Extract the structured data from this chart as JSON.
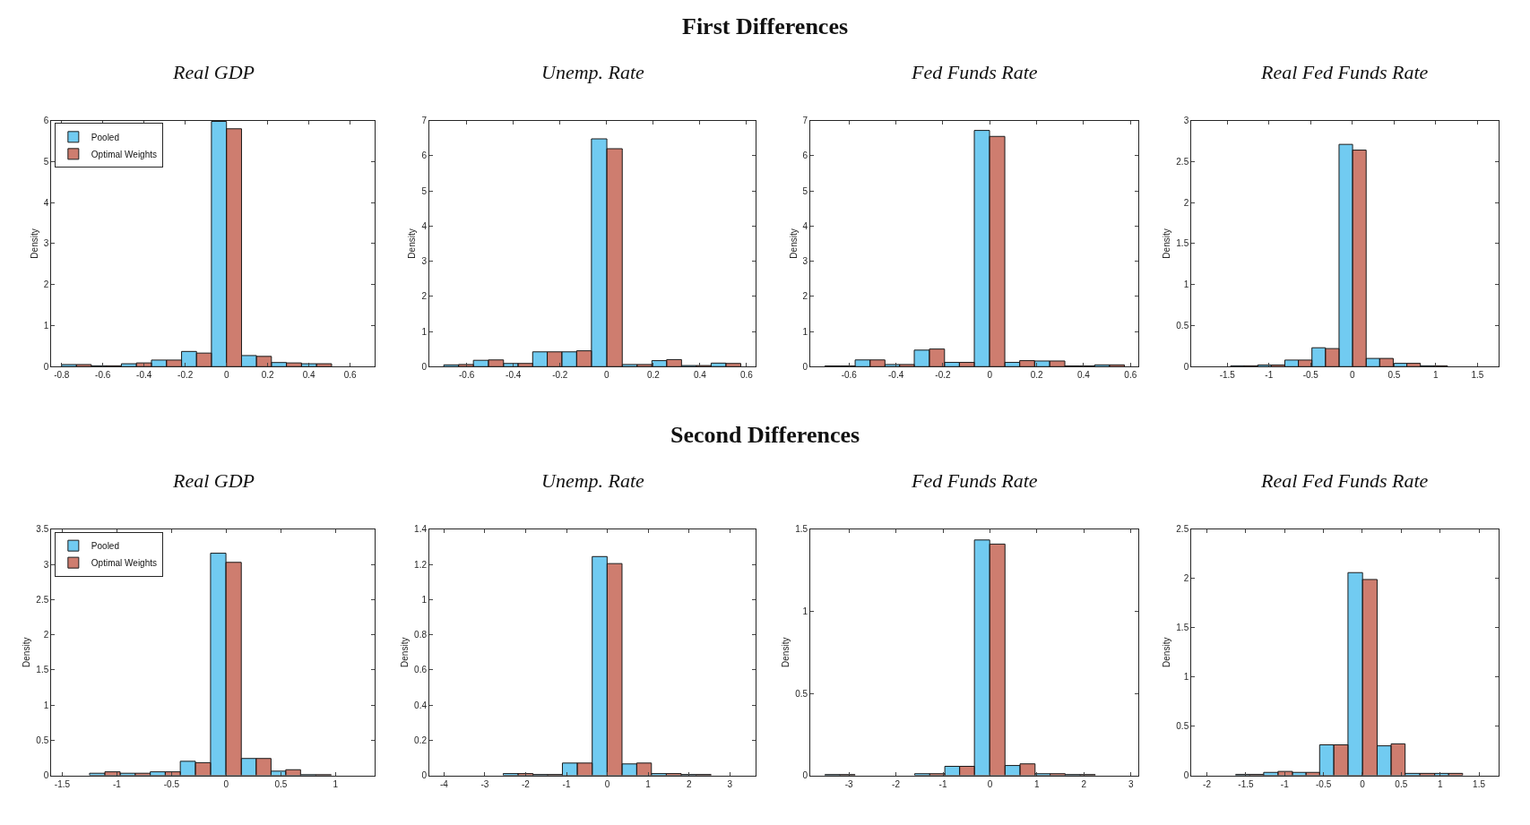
{
  "chart_data": [
    {
      "type": "histogram",
      "title": "Real GDP",
      "ylabel": "Density",
      "annotations": [
        "First Differences"
      ],
      "legend": "top left",
      "xlim": [
        -0.85,
        0.72
      ],
      "xticks": [
        -0.8,
        -0.6,
        -0.4,
        -0.2,
        0,
        0.2,
        0.4,
        0.6
      ],
      "ylim": [
        0,
        6
      ],
      "yticks": [
        0,
        1,
        2,
        3,
        4,
        5,
        6
      ],
      "bins": [
        -0.8,
        -0.656,
        -0.51,
        -0.364,
        -0.218,
        -0.073,
        0.073,
        0.218,
        0.364,
        0.51
      ],
      "series": [
        {
          "name": "Pooled",
          "color": "#4dbeee",
          "values": [
            0.05,
            0.02,
            0.07,
            0.16,
            0.37,
            5.98,
            0.27,
            0.1,
            0.07
          ]
        },
        {
          "name": "Optimal Weights",
          "color": "#b33822",
          "values": [
            0.05,
            0.02,
            0.09,
            0.16,
            0.33,
            5.8,
            0.25,
            0.09,
            0.07
          ]
        }
      ]
    },
    {
      "type": "histogram",
      "title": "Unemp. Rate",
      "ylabel": "Density",
      "xlim": [
        -0.76,
        0.64
      ],
      "xticks": [
        -0.6,
        -0.4,
        -0.2,
        0,
        0.2,
        0.4,
        0.6
      ],
      "ylim": [
        0,
        7
      ],
      "yticks": [
        0,
        1,
        2,
        3,
        4,
        5,
        6,
        7
      ],
      "bins": [
        -0.698,
        -0.571,
        -0.442,
        -0.317,
        -0.192,
        -0.065,
        0.067,
        0.194,
        0.321,
        0.448,
        0.575
      ],
      "series": [
        {
          "color": "#4dbeee",
          "values": [
            0.05,
            0.18,
            0.09,
            0.42,
            0.42,
            6.48,
            0.06,
            0.17,
            0.03,
            0.1
          ]
        },
        {
          "color": "#b33822",
          "values": [
            0.06,
            0.19,
            0.09,
            0.42,
            0.45,
            6.2,
            0.06,
            0.2,
            0.03,
            0.09
          ]
        }
      ]
    },
    {
      "type": "histogram",
      "title": "Fed Funds Rate",
      "ylabel": "Density",
      "xlim": [
        -0.765,
        0.634
      ],
      "xticks": [
        -0.6,
        -0.4,
        -0.2,
        0,
        0.2,
        0.4,
        0.6
      ],
      "ylim": [
        0,
        7
      ],
      "yticks": [
        0,
        1,
        2,
        3,
        4,
        5,
        6,
        7
      ],
      "bins": [
        -0.703,
        -0.574,
        -0.447,
        -0.322,
        -0.193,
        -0.066,
        0.064,
        0.191,
        0.32,
        0.447,
        0.574
      ],
      "series": [
        {
          "color": "#4dbeee",
          "values": [
            0.02,
            0.19,
            0.06,
            0.47,
            0.12,
            6.72,
            0.12,
            0.16,
            0.02,
            0.05
          ]
        },
        {
          "color": "#b33822",
          "values": [
            0.02,
            0.19,
            0.06,
            0.5,
            0.12,
            6.55,
            0.17,
            0.16,
            0.02,
            0.05
          ]
        }
      ]
    },
    {
      "type": "histogram",
      "title": "Real Fed Funds Rate",
      "ylabel": "Density",
      "xlim": [
        -1.93,
        1.75
      ],
      "xticks": [
        -1.5,
        -1,
        -0.5,
        0,
        0.5,
        1,
        1.5
      ],
      "ylim": [
        0,
        3
      ],
      "yticks": [
        0,
        0.5,
        1,
        1.5,
        2,
        2.5,
        3
      ],
      "bins": [
        -1.46,
        -1.135,
        -0.81,
        -0.485,
        -0.16,
        0.165,
        0.49,
        0.815,
        1.14
      ],
      "series": [
        {
          "color": "#4dbeee",
          "values": [
            0.01,
            0.02,
            0.08,
            0.23,
            2.71,
            0.1,
            0.04,
            0.01
          ]
        },
        {
          "color": "#b33822",
          "values": [
            0.01,
            0.02,
            0.08,
            0.22,
            2.64,
            0.1,
            0.04,
            0.01
          ]
        }
      ]
    },
    {
      "type": "histogram",
      "title": "Real GDP",
      "ylabel": "Density",
      "annotations": [
        "Second Differences"
      ],
      "legend": "top left",
      "xlim": [
        -1.6,
        1.36
      ],
      "xticks": [
        -1.5,
        -1,
        -0.5,
        0,
        0.5,
        1
      ],
      "ylim": [
        0,
        3.5
      ],
      "yticks": [
        0,
        0.5,
        1,
        1.5,
        2,
        2.5,
        3,
        3.5
      ],
      "bins": [
        -1.25,
        -0.97,
        -0.695,
        -0.42,
        -0.143,
        0.138,
        0.41,
        0.68,
        0.96
      ],
      "series": [
        {
          "name": "Pooled",
          "color": "#4dbeee",
          "values": [
            0.03,
            0.03,
            0.05,
            0.2,
            3.16,
            0.24,
            0.06,
            0.01
          ]
        },
        {
          "name": "Optimal Weights",
          "color": "#b33822",
          "values": [
            0.05,
            0.03,
            0.05,
            0.18,
            3.03,
            0.24,
            0.08,
            0.01
          ]
        }
      ]
    },
    {
      "type": "histogram",
      "title": "Unemp. Rate",
      "ylabel": "Density",
      "xlim": [
        -4.36,
        3.64
      ],
      "xticks": [
        -4,
        -3,
        -2,
        -1,
        0,
        1,
        2,
        3
      ],
      "ylim": [
        0,
        1.4
      ],
      "yticks": [
        0,
        0.2,
        0.4,
        0.6,
        0.8,
        1,
        1.2,
        1.4
      ],
      "bins": [
        -2.55,
        -1.82,
        -1.1,
        -0.37,
        0.36,
        1.08,
        1.81,
        2.54
      ],
      "series": [
        {
          "color": "#4dbeee",
          "values": [
            0.01,
            0.005,
            0.07,
            1.245,
            0.065,
            0.01,
            0.005
          ]
        },
        {
          "color": "#b33822",
          "values": [
            0.01,
            0.005,
            0.07,
            1.205,
            0.07,
            0.01,
            0.005
          ]
        }
      ]
    },
    {
      "type": "histogram",
      "title": "Fed Funds Rate",
      "ylabel": "Density",
      "xlim": [
        -3.82,
        3.16
      ],
      "xticks": [
        -3,
        -2,
        -1,
        0,
        1,
        2,
        3
      ],
      "ylim": [
        0,
        1.5
      ],
      "yticks": [
        0,
        0.5,
        1,
        1.5
      ],
      "bins": [
        -3.51,
        -2.87,
        -1.6,
        -0.96,
        -0.33,
        0.32,
        0.96,
        1.6,
        2.24
      ],
      "series": [
        {
          "color": "#4dbeee",
          "values": [
            0.005,
            null,
            0.01,
            0.055,
            1.435,
            0.06,
            0.01,
            0.005
          ]
        },
        {
          "color": "#b33822",
          "values": [
            0.005,
            null,
            0.01,
            0.055,
            1.41,
            0.07,
            0.01,
            0.005
          ]
        }
      ]
    },
    {
      "type": "histogram",
      "title": "Real Fed Funds Rate",
      "ylabel": "Density",
      "xlim": [
        -2.2,
        1.75
      ],
      "xticks": [
        -2,
        -1.5,
        -1,
        -0.5,
        0,
        0.5,
        1,
        1.5
      ],
      "ylim": [
        0,
        2.5
      ],
      "yticks": [
        0,
        0.5,
        1,
        1.5,
        2,
        2.5
      ],
      "bins": [
        -1.63,
        -1.27,
        -0.9,
        -0.55,
        -0.185,
        0.19,
        0.55,
        0.93,
        1.29
      ],
      "series": [
        {
          "color": "#4dbeee",
          "values": [
            0.01,
            0.03,
            0.03,
            0.31,
            2.06,
            0.3,
            0.02,
            0.02
          ]
        },
        {
          "color": "#b33822",
          "values": [
            0.01,
            0.04,
            0.03,
            0.31,
            1.99,
            0.32,
            0.02,
            0.02
          ]
        }
      ]
    }
  ]
}
